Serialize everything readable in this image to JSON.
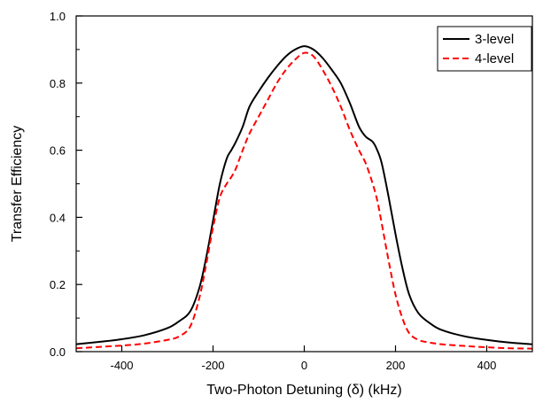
{
  "chart_data": {
    "type": "line",
    "title": "",
    "xlabel": "Two-Photon Detuning (δ) (kHz)",
    "ylabel": "Transfer Efficiency",
    "xlim": [
      -500,
      500
    ],
    "ylim": [
      0,
      1.0
    ],
    "x_ticks": [
      -400,
      -200,
      0,
      200,
      400
    ],
    "x_tick_labels": [
      "-400",
      "-200",
      "0",
      "200",
      "400"
    ],
    "y_ticks": [
      0,
      0.2,
      0.4,
      0.6,
      0.8,
      1.0
    ],
    "y_tick_labels": [
      "0.0",
      "0.2",
      "0.4",
      "0.6",
      "0.8",
      "1.0"
    ],
    "grid": false,
    "legend_position": "top-right",
    "series": [
      {
        "name": "3-level",
        "color": "#000000",
        "line_style": "solid",
        "x": [
          -500,
          -450,
          -400,
          -350,
          -300,
          -275,
          -250,
          -230,
          -215,
          -200,
          -185,
          -170,
          -160,
          -150,
          -135,
          -120,
          -100,
          -80,
          -60,
          -40,
          -20,
          0,
          20,
          40,
          60,
          80,
          100,
          120,
          135,
          150,
          160,
          170,
          185,
          200,
          215,
          230,
          250,
          275,
          300,
          350,
          400,
          450,
          500
        ],
        "y": [
          0.022,
          0.029,
          0.037,
          0.049,
          0.07,
          0.09,
          0.12,
          0.19,
          0.28,
          0.39,
          0.5,
          0.575,
          0.6,
          0.625,
          0.67,
          0.73,
          0.775,
          0.815,
          0.85,
          0.88,
          0.9,
          0.91,
          0.9,
          0.875,
          0.84,
          0.8,
          0.74,
          0.67,
          0.64,
          0.625,
          0.6,
          0.56,
          0.46,
          0.35,
          0.25,
          0.17,
          0.115,
          0.085,
          0.065,
          0.046,
          0.035,
          0.027,
          0.022
        ]
      },
      {
        "name": "4-level",
        "color": "#ff0000",
        "line_style": "dashed",
        "x": [
          -500,
          -450,
          -400,
          -350,
          -300,
          -275,
          -250,
          -230,
          -215,
          -200,
          -185,
          -170,
          -160,
          -150,
          -135,
          -120,
          -100,
          -80,
          -60,
          -40,
          -20,
          0,
          20,
          40,
          60,
          80,
          100,
          120,
          135,
          150,
          160,
          170,
          185,
          200,
          215,
          230,
          250,
          275,
          300,
          350,
          400,
          450,
          500
        ],
        "y": [
          0.01,
          0.014,
          0.018,
          0.024,
          0.035,
          0.045,
          0.075,
          0.16,
          0.26,
          0.37,
          0.46,
          0.5,
          0.52,
          0.545,
          0.6,
          0.65,
          0.7,
          0.75,
          0.8,
          0.84,
          0.87,
          0.89,
          0.88,
          0.84,
          0.79,
          0.73,
          0.66,
          0.6,
          0.56,
          0.5,
          0.45,
          0.38,
          0.27,
          0.17,
          0.1,
          0.055,
          0.035,
          0.027,
          0.022,
          0.017,
          0.013,
          0.01,
          0.009
        ]
      }
    ]
  }
}
